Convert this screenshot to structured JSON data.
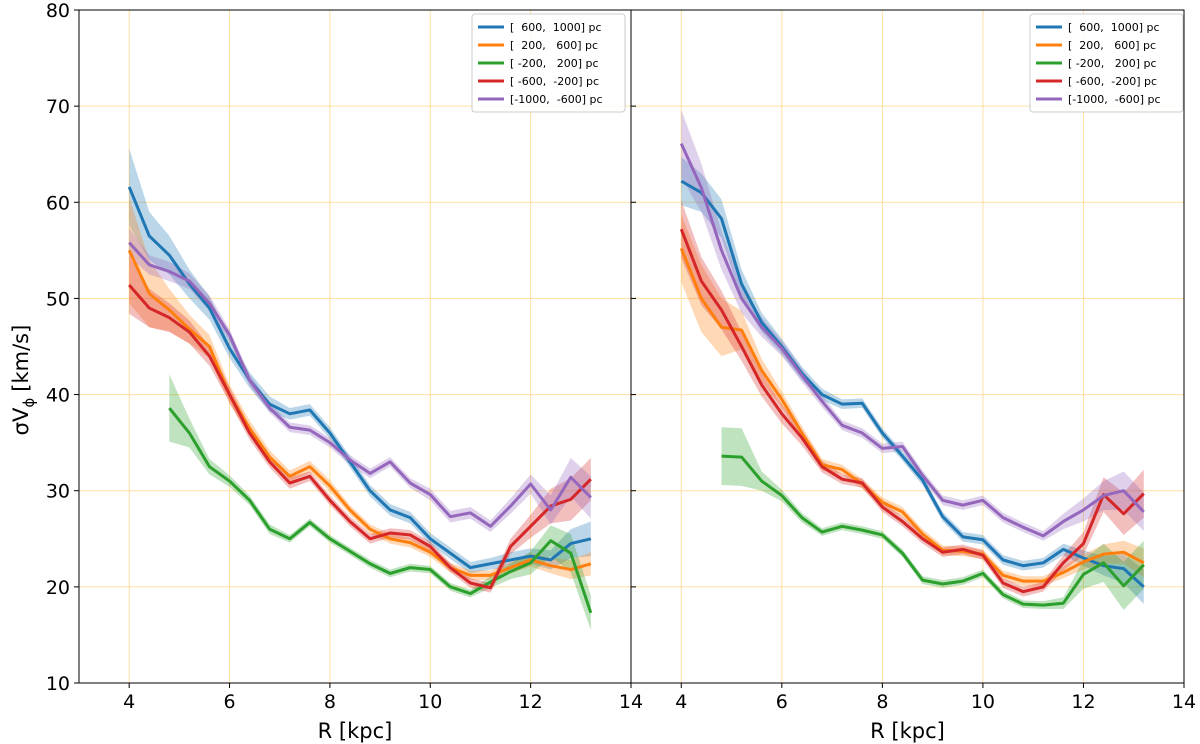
{
  "chart_data": [
    {
      "type": "line",
      "title": "",
      "xlabel": "R [kpc]",
      "ylabel": "σV_φ [km/s]",
      "ylabel_main": "σV",
      "ylabel_sub": "ϕ",
      "ylabel_unit": "[km/s]",
      "xlim": [
        3,
        14
      ],
      "ylim": [
        10,
        80
      ],
      "xticks": [
        4,
        6,
        8,
        10,
        12,
        14
      ],
      "yticks": [
        10,
        20,
        30,
        40,
        50,
        60,
        70,
        80
      ],
      "grid": true,
      "legend_position": "top-right",
      "series": [
        {
          "name": "[  600,  1000] pc",
          "color": "#1f77b4",
          "x": [
            4.0,
            4.4,
            4.8,
            5.2,
            5.6,
            6.0,
            6.4,
            6.8,
            7.2,
            7.6,
            8.0,
            8.4,
            8.8,
            9.2,
            9.6,
            10.0,
            10.4,
            10.8,
            11.2,
            11.6,
            12.0,
            12.4,
            12.8,
            13.2
          ],
          "y": [
            61.6,
            56.5,
            54.5,
            51.5,
            49.0,
            44.8,
            41.5,
            39.0,
            38.0,
            38.4,
            36.0,
            33.0,
            30.0,
            28.0,
            27.2,
            25.0,
            23.5,
            22.0,
            22.4,
            22.8,
            23.2,
            22.8,
            24.5,
            25.0
          ],
          "err": [
            4.0,
            2.5,
            2.0,
            1.5,
            1.2,
            1.0,
            0.8,
            0.8,
            0.6,
            0.6,
            0.6,
            0.6,
            0.6,
            0.6,
            0.6,
            0.6,
            0.6,
            0.6,
            0.6,
            0.8,
            0.8,
            1.0,
            1.5,
            1.8
          ]
        },
        {
          "name": "[  200,   600] pc",
          "color": "#ff7f0e",
          "x": [
            4.0,
            4.4,
            4.8,
            5.2,
            5.6,
            6.0,
            6.4,
            6.8,
            7.2,
            7.6,
            8.0,
            8.4,
            8.8,
            9.2,
            9.6,
            10.0,
            10.4,
            10.8,
            11.2,
            11.6,
            12.0,
            12.4,
            12.8,
            13.2
          ],
          "y": [
            55.0,
            50.5,
            48.8,
            46.8,
            45.0,
            40.0,
            36.5,
            33.5,
            31.5,
            32.5,
            30.5,
            28.0,
            26.0,
            25.0,
            24.6,
            23.6,
            22.0,
            21.2,
            21.2,
            22.0,
            22.8,
            22.2,
            21.8,
            22.4
          ],
          "err": [
            5.5,
            3.5,
            2.2,
            1.5,
            1.2,
            1.0,
            0.8,
            0.7,
            0.6,
            0.6,
            0.6,
            0.5,
            0.5,
            0.5,
            0.5,
            0.5,
            0.5,
            0.5,
            0.5,
            0.6,
            0.7,
            0.8,
            1.0,
            1.2
          ]
        },
        {
          "name": "[ -200,   200] pc",
          "color": "#2ca02c",
          "x": [
            4.8,
            5.2,
            5.6,
            6.0,
            6.4,
            6.8,
            7.2,
            7.6,
            8.0,
            8.4,
            8.8,
            9.2,
            9.6,
            10.0,
            10.4,
            10.8,
            11.2,
            11.6,
            12.0,
            12.4,
            12.8,
            13.2
          ],
          "y": [
            38.6,
            36.0,
            32.5,
            31.0,
            29.0,
            26.0,
            25.0,
            26.7,
            25.0,
            23.7,
            22.4,
            21.4,
            22.0,
            21.8,
            20.0,
            19.3,
            20.5,
            21.6,
            22.5,
            24.8,
            23.5,
            17.3
          ],
          "err": [
            3.5,
            1.5,
            0.8,
            0.6,
            0.5,
            0.5,
            0.4,
            0.4,
            0.4,
            0.4,
            0.4,
            0.4,
            0.4,
            0.4,
            0.4,
            0.4,
            0.6,
            0.8,
            1.2,
            1.6,
            2.0,
            1.8
          ]
        },
        {
          "name": "[ -600,  -200] pc",
          "color": "#d62728",
          "x": [
            4.0,
            4.4,
            4.8,
            5.2,
            5.6,
            6.0,
            6.4,
            6.8,
            7.2,
            7.6,
            8.0,
            8.4,
            8.8,
            9.2,
            9.6,
            10.0,
            10.4,
            10.8,
            11.2,
            11.6,
            12.0,
            12.4,
            12.8,
            13.2
          ],
          "y": [
            51.4,
            49.0,
            48.0,
            46.5,
            44.0,
            40.0,
            36.0,
            33.0,
            30.8,
            31.5,
            29.0,
            26.8,
            25.0,
            25.6,
            25.4,
            24.2,
            22.0,
            20.4,
            19.9,
            24.2,
            26.3,
            28.4,
            29.1,
            31.2
          ],
          "err": [
            3.0,
            2.0,
            1.5,
            1.2,
            1.0,
            0.8,
            0.7,
            0.6,
            0.6,
            0.5,
            0.5,
            0.5,
            0.5,
            0.5,
            0.5,
            0.5,
            0.5,
            0.5,
            0.5,
            0.8,
            1.2,
            1.8,
            2.2,
            2.2
          ]
        },
        {
          "name": "[-1000,  -600] pc",
          "color": "#9467bd",
          "x": [
            4.0,
            4.4,
            4.8,
            5.2,
            5.6,
            6.0,
            6.4,
            6.8,
            7.2,
            7.6,
            8.0,
            8.4,
            8.8,
            9.2,
            9.6,
            10.0,
            10.4,
            10.8,
            11.2,
            11.6,
            12.0,
            12.4,
            12.8,
            13.2
          ],
          "y": [
            55.8,
            53.5,
            52.8,
            51.8,
            49.5,
            46.2,
            41.5,
            38.6,
            36.6,
            36.3,
            35.0,
            33.2,
            31.8,
            33.0,
            30.8,
            29.6,
            27.3,
            27.7,
            26.3,
            28.4,
            30.7,
            28.0,
            31.4,
            29.3
          ],
          "err": [
            1.5,
            1.0,
            1.0,
            0.8,
            0.8,
            0.6,
            0.6,
            0.5,
            0.5,
            0.5,
            0.5,
            0.5,
            0.5,
            0.5,
            0.5,
            0.6,
            0.6,
            0.6,
            0.6,
            0.8,
            1.0,
            1.5,
            2.0,
            2.2
          ]
        }
      ]
    },
    {
      "type": "line",
      "title": "",
      "xlabel": "R [kpc]",
      "ylabel": "",
      "xlim": [
        3,
        14
      ],
      "ylim": [
        10,
        80
      ],
      "xticks": [
        4,
        6,
        8,
        10,
        12,
        14
      ],
      "yticks": [
        10,
        20,
        30,
        40,
        50,
        60,
        70,
        80
      ],
      "grid": true,
      "legend_position": "top-right",
      "series": [
        {
          "name": "[  600,  1000] pc",
          "color": "#1f77b4",
          "x": [
            4.0,
            4.4,
            4.8,
            5.2,
            5.6,
            6.0,
            6.4,
            6.8,
            7.2,
            7.6,
            8.0,
            8.4,
            8.8,
            9.2,
            9.6,
            10.0,
            10.4,
            10.8,
            11.2,
            11.6,
            12.0,
            12.4,
            12.8,
            13.2
          ],
          "y": [
            62.2,
            61.0,
            58.3,
            51.5,
            47.5,
            45.0,
            42.2,
            40.0,
            39.0,
            39.1,
            36.0,
            33.6,
            31.1,
            27.3,
            25.2,
            24.9,
            22.8,
            22.2,
            22.5,
            23.9,
            23.0,
            22.2,
            21.9,
            20.0
          ],
          "err": [
            2.5,
            2.0,
            2.0,
            1.5,
            1.0,
            0.8,
            0.7,
            0.6,
            0.5,
            0.5,
            0.5,
            0.5,
            0.5,
            0.5,
            0.5,
            0.5,
            0.5,
            0.5,
            0.5,
            0.6,
            0.8,
            1.0,
            1.5,
            1.8
          ]
        },
        {
          "name": "[  200,   600] pc",
          "color": "#ff7f0e",
          "x": [
            4.0,
            4.4,
            4.8,
            5.2,
            5.6,
            6.0,
            6.4,
            6.8,
            7.2,
            7.6,
            8.0,
            8.4,
            8.8,
            9.2,
            9.6,
            10.0,
            10.4,
            10.8,
            11.2,
            11.6,
            12.0,
            12.4,
            12.8,
            13.2
          ],
          "y": [
            55.2,
            50.0,
            47.0,
            46.7,
            42.5,
            39.5,
            36.0,
            32.7,
            32.2,
            30.7,
            28.8,
            27.8,
            25.5,
            23.8,
            23.7,
            23.4,
            21.2,
            20.6,
            20.6,
            21.5,
            22.6,
            23.4,
            23.6,
            22.5
          ],
          "err": [
            3.5,
            3.5,
            3.0,
            2.0,
            1.2,
            0.8,
            0.7,
            0.6,
            0.5,
            0.5,
            0.5,
            0.5,
            0.5,
            0.5,
            0.5,
            0.5,
            0.5,
            0.5,
            0.5,
            0.6,
            0.8,
            1.0,
            1.2,
            1.5
          ]
        },
        {
          "name": "[ -200,   200] pc",
          "color": "#2ca02c",
          "x": [
            4.8,
            5.2,
            5.6,
            6.0,
            6.4,
            6.8,
            7.2,
            7.6,
            8.0,
            8.4,
            8.8,
            9.2,
            9.6,
            10.0,
            10.4,
            10.8,
            11.2,
            11.6,
            12.0,
            12.4,
            12.8,
            13.2
          ],
          "y": [
            33.6,
            33.5,
            31.0,
            29.5,
            27.2,
            25.7,
            26.3,
            25.9,
            25.4,
            23.5,
            20.7,
            20.3,
            20.6,
            21.4,
            19.2,
            18.2,
            18.1,
            18.3,
            21.3,
            22.5,
            20.1,
            22.3
          ],
          "err": [
            3.0,
            3.0,
            1.0,
            0.6,
            0.5,
            0.4,
            0.4,
            0.4,
            0.4,
            0.4,
            0.4,
            0.4,
            0.4,
            0.4,
            0.4,
            0.4,
            0.4,
            0.6,
            1.5,
            2.0,
            2.5,
            2.5
          ]
        },
        {
          "name": "[ -600,  -200] pc",
          "color": "#d62728",
          "x": [
            4.0,
            4.4,
            4.8,
            5.2,
            5.6,
            6.0,
            6.4,
            6.8,
            7.2,
            7.6,
            8.0,
            8.4,
            8.8,
            9.2,
            9.6,
            10.0,
            10.4,
            10.8,
            11.2,
            11.6,
            12.0,
            12.4,
            12.8,
            13.2
          ],
          "y": [
            57.2,
            51.8,
            48.8,
            45.0,
            41.0,
            38.0,
            35.5,
            32.5,
            31.2,
            30.8,
            28.3,
            26.8,
            25.0,
            23.6,
            23.9,
            23.3,
            20.4,
            19.5,
            20.0,
            22.5,
            24.5,
            29.6,
            27.6,
            29.7
          ],
          "err": [
            3.0,
            2.5,
            2.0,
            1.5,
            1.2,
            1.0,
            0.8,
            0.6,
            0.5,
            0.5,
            0.5,
            0.5,
            0.5,
            0.5,
            0.5,
            0.5,
            0.5,
            0.5,
            0.5,
            0.8,
            1.2,
            1.8,
            2.2,
            2.5
          ]
        },
        {
          "name": "[-1000,  -600] pc",
          "color": "#9467bd",
          "x": [
            4.0,
            4.4,
            4.8,
            5.2,
            5.6,
            6.0,
            6.4,
            6.8,
            7.2,
            7.6,
            8.0,
            8.4,
            8.8,
            9.2,
            9.6,
            10.0,
            10.4,
            10.8,
            11.2,
            11.6,
            12.0,
            12.4,
            12.8,
            13.2
          ],
          "y": [
            66.1,
            61.5,
            55.0,
            50.0,
            47.0,
            44.8,
            42.0,
            39.3,
            36.8,
            36.0,
            34.4,
            34.6,
            31.6,
            29.0,
            28.5,
            29.0,
            27.2,
            26.2,
            25.3,
            26.8,
            28.0,
            29.5,
            30.0,
            27.8
          ],
          "err": [
            3.5,
            2.5,
            2.0,
            1.5,
            1.0,
            0.8,
            0.7,
            0.6,
            0.5,
            0.5,
            0.5,
            0.5,
            0.5,
            0.5,
            0.5,
            0.5,
            0.5,
            0.5,
            0.5,
            0.8,
            1.2,
            1.5,
            2.0,
            2.0
          ]
        }
      ]
    }
  ]
}
